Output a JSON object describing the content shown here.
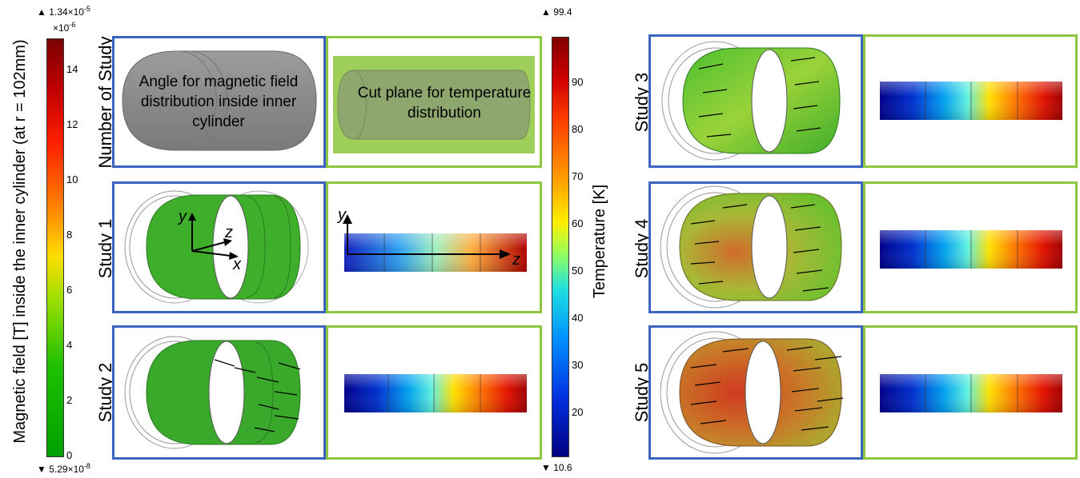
{
  "left_colorbar": {
    "max_label": "▲ 1.34×10",
    "max_exp": "-5",
    "scale_label": "×10",
    "scale_exp": "-6",
    "min_label": "▼ 5.29×10",
    "min_exp": "-8",
    "ticks": [
      "14",
      "12",
      "10",
      "8",
      "6",
      "4",
      "2",
      "0"
    ],
    "axis_label": "Magnetic field [T] inside the inner cylinder (at r = 102mm)"
  },
  "right_colorbar": {
    "max_label": "▲ 99.4",
    "min_label": "▼ 10.6",
    "ticks": [
      "90",
      "80",
      "70",
      "60",
      "50",
      "40",
      "30",
      "20"
    ],
    "axis_label": "Temperature [K]"
  },
  "rows": {
    "header": "Number of Study",
    "study1": "Study 1",
    "study2": "Study 2",
    "study3": "Study 3",
    "study4": "Study 4",
    "study5": "Study 5"
  },
  "header_panels": {
    "magnetic_text": "Angle for magnetic field distribution inside inner cylinder",
    "temperature_text": "Cut plane for temperature distribution"
  },
  "axes": {
    "y": "y",
    "z": "z",
    "x": "x"
  },
  "colors": {
    "blue_frame": "#3b64c0",
    "green_frame": "#8dc63f"
  }
}
